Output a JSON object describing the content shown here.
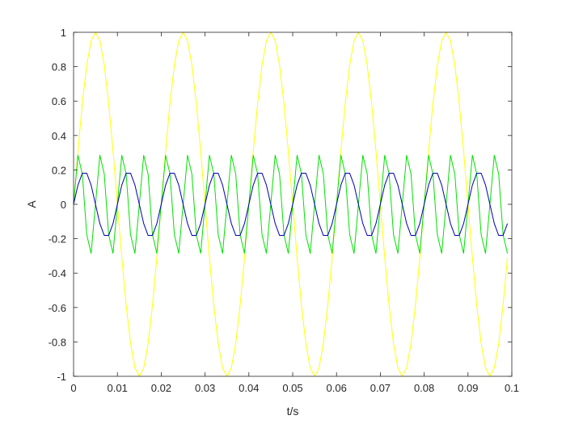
{
  "chart_data": {
    "type": "line",
    "title": "",
    "xlabel": "t/s",
    "ylabel": "A",
    "xlim": [
      0,
      0.1
    ],
    "ylim": [
      -1,
      1
    ],
    "grid": false,
    "box": true,
    "x_ticks": [
      0,
      0.01,
      0.02,
      0.03,
      0.04,
      0.05,
      0.06,
      0.07,
      0.08,
      0.09,
      0.1
    ],
    "x_tick_labels": [
      "0",
      "0.01",
      "0.02",
      "0.03",
      "0.04",
      "0.05",
      "0.06",
      "0.07",
      "0.08",
      "0.09",
      "0.1"
    ],
    "y_ticks": [
      -1,
      -0.8,
      -0.6,
      -0.4,
      -0.2,
      0,
      0.2,
      0.4,
      0.6,
      0.8,
      1
    ],
    "y_tick_labels": [
      "-1",
      "-0.8",
      "-0.6",
      "-0.4",
      "-0.2",
      "0",
      "0.2",
      "0.4",
      "0.6",
      "0.8",
      "1"
    ],
    "series": [
      {
        "color": "#ffff00",
        "x": [
          0,
          0.001,
          0.002,
          0.003,
          0.004,
          0.005,
          0.006,
          0.007,
          0.008,
          0.009,
          0.01,
          0.011,
          0.012,
          0.013,
          0.014,
          0.015,
          0.016,
          0.017,
          0.018,
          0.019,
          0.02,
          0.021,
          0.022,
          0.023,
          0.024,
          0.025,
          0.026,
          0.027,
          0.028,
          0.029,
          0.03,
          0.031,
          0.032,
          0.033,
          0.034,
          0.035,
          0.036,
          0.037,
          0.038,
          0.039,
          0.04,
          0.041,
          0.042,
          0.043,
          0.044,
          0.045,
          0.046,
          0.047,
          0.048,
          0.049,
          0.05,
          0.051,
          0.052,
          0.053,
          0.054,
          0.055,
          0.056,
          0.057,
          0.058,
          0.059,
          0.06,
          0.061,
          0.062,
          0.063,
          0.064,
          0.065,
          0.066,
          0.067,
          0.068,
          0.069,
          0.07,
          0.071,
          0.072,
          0.073,
          0.074,
          0.075,
          0.076,
          0.077,
          0.078,
          0.079,
          0.08,
          0.081,
          0.082,
          0.083,
          0.084,
          0.085,
          0.086,
          0.087,
          0.088,
          0.089,
          0.09,
          0.091,
          0.092,
          0.093,
          0.094,
          0.095,
          0.096,
          0.097,
          0.098,
          0.099
        ],
        "y": [
          0,
          0.309,
          0.588,
          0.809,
          0.951,
          1,
          0.951,
          0.809,
          0.588,
          0.309,
          0,
          -0.309,
          -0.588,
          -0.809,
          -0.951,
          -1,
          -0.951,
          -0.809,
          -0.588,
          -0.309,
          0,
          0.309,
          0.588,
          0.809,
          0.951,
          1,
          0.951,
          0.809,
          0.588,
          0.309,
          0,
          -0.309,
          -0.588,
          -0.809,
          -0.951,
          -1,
          -0.951,
          -0.809,
          -0.588,
          -0.309,
          0,
          0.309,
          0.588,
          0.809,
          0.951,
          1,
          0.951,
          0.809,
          0.588,
          0.309,
          0,
          -0.309,
          -0.588,
          -0.809,
          -0.951,
          -1,
          -0.951,
          -0.809,
          -0.588,
          -0.309,
          0,
          0.309,
          0.588,
          0.809,
          0.951,
          1,
          0.951,
          0.809,
          0.588,
          0.309,
          0,
          -0.309,
          -0.588,
          -0.809,
          -0.951,
          -1,
          -0.951,
          -0.809,
          -0.588,
          -0.309,
          0,
          0.309,
          0.588,
          0.809,
          0.951,
          1,
          0.951,
          0.809,
          0.588,
          0.309,
          0,
          -0.309,
          -0.588,
          -0.809,
          -0.951,
          -1,
          -0.951,
          -0.809,
          -0.588,
          -0.309
        ]
      },
      {
        "color": "#00e000",
        "x": [
          0,
          0.001,
          0.002,
          0.003,
          0.004,
          0.005,
          0.006,
          0.007,
          0.008,
          0.009,
          0.01,
          0.011,
          0.012,
          0.013,
          0.014,
          0.015,
          0.016,
          0.017,
          0.018,
          0.019,
          0.02,
          0.021,
          0.022,
          0.023,
          0.024,
          0.025,
          0.026,
          0.027,
          0.028,
          0.029,
          0.03,
          0.031,
          0.032,
          0.033,
          0.034,
          0.035,
          0.036,
          0.037,
          0.038,
          0.039,
          0.04,
          0.041,
          0.042,
          0.043,
          0.044,
          0.045,
          0.046,
          0.047,
          0.048,
          0.049,
          0.05,
          0.051,
          0.052,
          0.053,
          0.054,
          0.055,
          0.056,
          0.057,
          0.058,
          0.059,
          0.06,
          0.061,
          0.062,
          0.063,
          0.064,
          0.065,
          0.066,
          0.067,
          0.068,
          0.069,
          0.07,
          0.071,
          0.072,
          0.073,
          0.074,
          0.075,
          0.076,
          0.077,
          0.078,
          0.079,
          0.08,
          0.081,
          0.082,
          0.083,
          0.084,
          0.085,
          0.086,
          0.087,
          0.088,
          0.089,
          0.09,
          0.091,
          0.092,
          0.093,
          0.094,
          0.095,
          0.096,
          0.097,
          0.098,
          0.099
        ],
        "y": [
          0,
          0.285,
          0.176,
          -0.176,
          -0.285,
          0,
          0.285,
          0.176,
          -0.176,
          -0.285,
          0,
          0.285,
          0.176,
          -0.176,
          -0.285,
          0,
          0.285,
          0.176,
          -0.176,
          -0.285,
          0,
          0.285,
          0.176,
          -0.176,
          -0.285,
          0,
          0.285,
          0.176,
          -0.176,
          -0.285,
          0,
          0.285,
          0.176,
          -0.176,
          -0.285,
          0,
          0.285,
          0.176,
          -0.176,
          -0.285,
          0,
          0.285,
          0.176,
          -0.176,
          -0.285,
          0,
          0.285,
          0.176,
          -0.176,
          -0.285,
          0,
          0.285,
          0.176,
          -0.176,
          -0.285,
          0,
          0.285,
          0.176,
          -0.176,
          -0.285,
          0,
          0.285,
          0.176,
          -0.176,
          -0.285,
          0,
          0.285,
          0.176,
          -0.176,
          -0.285,
          0,
          0.285,
          0.176,
          -0.176,
          -0.285,
          0,
          0.285,
          0.176,
          -0.176,
          -0.285,
          0,
          0.285,
          0.176,
          -0.176,
          -0.285,
          0,
          0.285,
          0.176,
          -0.176,
          -0.285,
          0,
          0.285,
          0.176,
          -0.176,
          -0.285,
          0,
          0.285,
          0.176,
          -0.176,
          -0.285
        ]
      },
      {
        "color": "#0000b4",
        "x": [
          0,
          0.001,
          0.002,
          0.003,
          0.004,
          0.005,
          0.006,
          0.007,
          0.008,
          0.009,
          0.01,
          0.011,
          0.012,
          0.013,
          0.014,
          0.015,
          0.016,
          0.017,
          0.018,
          0.019,
          0.02,
          0.021,
          0.022,
          0.023,
          0.024,
          0.025,
          0.026,
          0.027,
          0.028,
          0.029,
          0.03,
          0.031,
          0.032,
          0.033,
          0.034,
          0.035,
          0.036,
          0.037,
          0.038,
          0.039,
          0.04,
          0.041,
          0.042,
          0.043,
          0.044,
          0.045,
          0.046,
          0.047,
          0.048,
          0.049,
          0.05,
          0.051,
          0.052,
          0.053,
          0.054,
          0.055,
          0.056,
          0.057,
          0.058,
          0.059,
          0.06,
          0.061,
          0.062,
          0.063,
          0.064,
          0.065,
          0.066,
          0.067,
          0.068,
          0.069,
          0.07,
          0.071,
          0.072,
          0.073,
          0.074,
          0.075,
          0.076,
          0.077,
          0.078,
          0.079,
          0.08,
          0.081,
          0.082,
          0.083,
          0.084,
          0.085,
          0.086,
          0.087,
          0.088,
          0.089,
          0.09,
          0.091,
          0.092,
          0.093,
          0.094,
          0.095,
          0.096,
          0.097,
          0.098,
          0.099
        ],
        "y": [
          0,
          0.112,
          0.181,
          0.181,
          0.112,
          0,
          -0.112,
          -0.181,
          -0.181,
          -0.112,
          0,
          0.112,
          0.181,
          0.181,
          0.112,
          0,
          -0.112,
          -0.181,
          -0.181,
          -0.112,
          0,
          0.112,
          0.181,
          0.181,
          0.112,
          0,
          -0.112,
          -0.181,
          -0.181,
          -0.112,
          0,
          0.112,
          0.181,
          0.181,
          0.112,
          0,
          -0.112,
          -0.181,
          -0.181,
          -0.112,
          0,
          0.112,
          0.181,
          0.181,
          0.112,
          0,
          -0.112,
          -0.181,
          -0.181,
          -0.112,
          0,
          0.112,
          0.181,
          0.181,
          0.112,
          0,
          -0.112,
          -0.181,
          -0.181,
          -0.112,
          0,
          0.112,
          0.181,
          0.181,
          0.112,
          0,
          -0.112,
          -0.181,
          -0.181,
          -0.112,
          0,
          0.112,
          0.181,
          0.181,
          0.112,
          0,
          -0.112,
          -0.181,
          -0.181,
          -0.112,
          0,
          0.112,
          0.181,
          0.181,
          0.112,
          0,
          -0.112,
          -0.181,
          -0.181,
          -0.112,
          0,
          0.112,
          0.181,
          0.181,
          0.112,
          0,
          -0.112,
          -0.181,
          -0.181,
          -0.112
        ]
      }
    ]
  }
}
